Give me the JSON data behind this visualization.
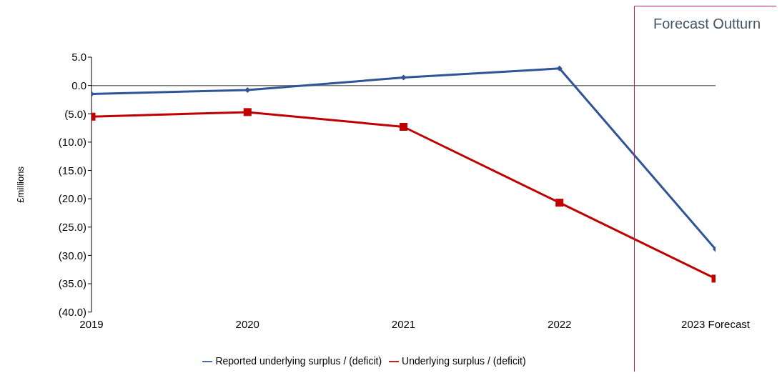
{
  "chart_data": {
    "type": "line",
    "ylabel": "£millions",
    "categories": [
      "2019",
      "2020",
      "2021",
      "2022",
      "2023 Forecast"
    ],
    "series": [
      {
        "name": "Reported underlying surplus / (deficit)",
        "color": "#2f5597",
        "marker": "diamond",
        "values": [
          -1.5,
          -0.8,
          1.4,
          3.0,
          -28.9
        ]
      },
      {
        "name": "Underlying surplus / (deficit)",
        "color": "#c00000",
        "marker": "square",
        "values": [
          -5.5,
          -4.7,
          -7.3,
          -20.7,
          -34.1
        ]
      }
    ],
    "ylim": [
      -40,
      5
    ],
    "yticks": [
      {
        "value": -40,
        "label": "(40.0)"
      },
      {
        "value": -35,
        "label": "(35.0)"
      },
      {
        "value": -30,
        "label": "(30.0)"
      },
      {
        "value": -25,
        "label": "(25.0)"
      },
      {
        "value": -20,
        "label": "(20.0)"
      },
      {
        "value": -15,
        "label": "(15.0)"
      },
      {
        "value": -10,
        "label": "(10.0)"
      },
      {
        "value": -5,
        "label": "(5.0)"
      },
      {
        "value": 0,
        "label": "0.0"
      },
      {
        "value": 5,
        "label": "5.0"
      }
    ],
    "legend": "bottom",
    "line_style": "solid",
    "annotations": [
      "Forecast Outturn"
    ]
  }
}
